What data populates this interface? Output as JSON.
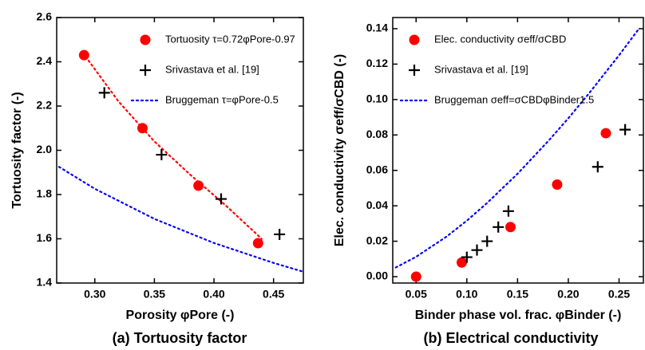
{
  "chart_data": [
    {
      "type": "scatter",
      "title": "(a) Tortuosity factor",
      "x_label": "Porosity φPore (-)",
      "y_label": "Tortuosity factor (-)",
      "xlim": [
        0.268,
        0.475
      ],
      "ylim": [
        1.4,
        2.6
      ],
      "xticks": [
        {
          "value": 0.3,
          "label": "0.30"
        },
        0.35,
        {
          "value": 0.4,
          "label": "0.40"
        },
        0.45
      ],
      "yticks": [
        1.4,
        1.6,
        1.8,
        {
          "value": 2,
          "label": "2.0"
        },
        2.2,
        2.4,
        2.6
      ],
      "legend": "upper right",
      "series": [
        {
          "name": "Tortuosity τ=0.72φPore-0.97",
          "color": "#ff0000",
          "marker": "circle",
          "x": [
            0.291,
            0.34,
            0.387,
            0.437
          ],
          "values": [
            2.43,
            2.1,
            1.84,
            1.58
          ]
        },
        {
          "color": "#ff0000",
          "line": "dotted",
          "x": [
            0.29,
            0.32,
            0.35,
            0.38,
            0.41,
            0.44
          ],
          "values": [
            2.44,
            2.22,
            2.04,
            1.89,
            1.75,
            1.6
          ]
        },
        {
          "name": "Srivastava et al. [19]",
          "color": "#000000",
          "marker": "plus",
          "x": [
            0.308,
            0.356,
            0.406,
            0.455
          ],
          "values": [
            2.26,
            1.98,
            1.78,
            1.62
          ]
        },
        {
          "name": "Bruggeman τ=φPore-0.5",
          "color": "#0000ff",
          "line": "dotted",
          "x": [
            0.27,
            0.3,
            0.35,
            0.4,
            0.45,
            0.475
          ],
          "values": [
            1.925,
            1.826,
            1.69,
            1.581,
            1.491,
            1.451
          ]
        }
      ]
    },
    {
      "type": "scatter",
      "title": "(b) Electrical conductivity",
      "x_label": "Binder phase vol. frac. φBinder (-)",
      "y_label": "Elec. conductivity σeff/σCBD (-)",
      "xlim": [
        0.027,
        0.274
      ],
      "ylim": [
        -0.0036,
        0.1463
      ],
      "xticks": [
        0.05,
        {
          "value": 0.1,
          "label": "0.10"
        },
        0.15,
        {
          "value": 0.2,
          "label": "0.20"
        },
        0.25
      ],
      "yticks": [
        {
          "value": 0,
          "label": "0.00"
        },
        0.02,
        0.04,
        0.06,
        0.08,
        {
          "value": 0.1,
          "label": "0.10"
        },
        0.12,
        0.14
      ],
      "legend": "upper left",
      "series": [
        {
          "name": "Elec. conductivity σeff/σCBD",
          "color": "#ff0000",
          "marker": "circle",
          "x": [
            0.05,
            0.095,
            0.143,
            0.189,
            0.237
          ],
          "values": [
            0,
            0.008,
            0.028,
            0.052,
            0.081
          ]
        },
        {
          "name": "Srivastava et al. [19]",
          "color": "#000000",
          "marker": "plus",
          "x": [
            0.1,
            0.11,
            0.12,
            0.131,
            0.141,
            0.229,
            0.256
          ],
          "values": [
            0.011,
            0.015,
            0.02,
            0.028,
            0.037,
            0.062,
            0.083
          ]
        },
        {
          "name": "Bruggeman σeff=σCBDφBinder1.5",
          "color": "#0000ff",
          "line": "dotted",
          "x": [
            0.03,
            0.05,
            0.08,
            0.1,
            0.12,
            0.15,
            0.18,
            0.2,
            0.22,
            0.25,
            0.27
          ],
          "values": [
            0.0052,
            0.0112,
            0.0226,
            0.0316,
            0.0416,
            0.0581,
            0.0764,
            0.0894,
            0.1032,
            0.125,
            0.1403
          ]
        }
      ]
    }
  ]
}
